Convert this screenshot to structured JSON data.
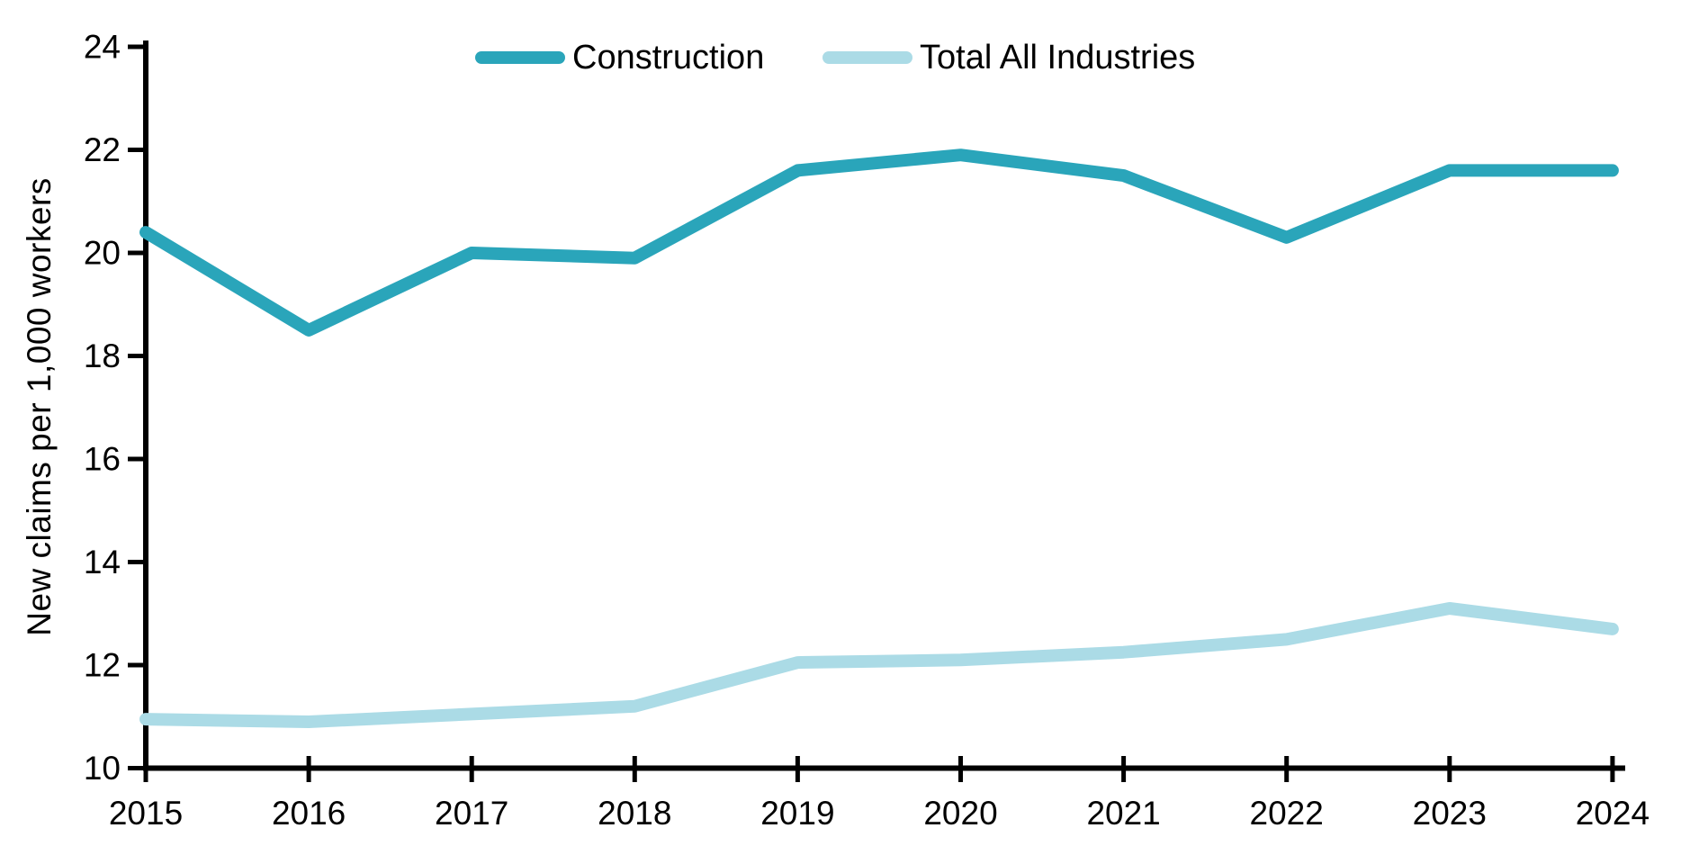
{
  "chart_data": {
    "type": "line",
    "title": "",
    "xlabel": "",
    "ylabel": "New claims per 1,000 workers",
    "categories": [
      "2015",
      "2016",
      "2017",
      "2018",
      "2019",
      "2020",
      "2021",
      "2022",
      "2023",
      "2024"
    ],
    "series": [
      {
        "name": "Construction",
        "color": "#2AA5BA",
        "values": [
          20.4,
          18.5,
          20.0,
          19.9,
          21.6,
          21.9,
          21.5,
          20.3,
          21.6,
          21.6
        ]
      },
      {
        "name": "Total All Industries",
        "color": "#ABDBE6",
        "values": [
          10.95,
          10.9,
          11.05,
          11.2,
          12.05,
          12.1,
          12.25,
          12.5,
          13.1,
          12.7
        ]
      }
    ],
    "ylim": [
      10,
      24
    ],
    "y_ticks": [
      10,
      12,
      14,
      16,
      18,
      20,
      22,
      24
    ],
    "grid": false,
    "legend_position": "top",
    "axis_color": "#000000",
    "text_color": "#000000"
  }
}
